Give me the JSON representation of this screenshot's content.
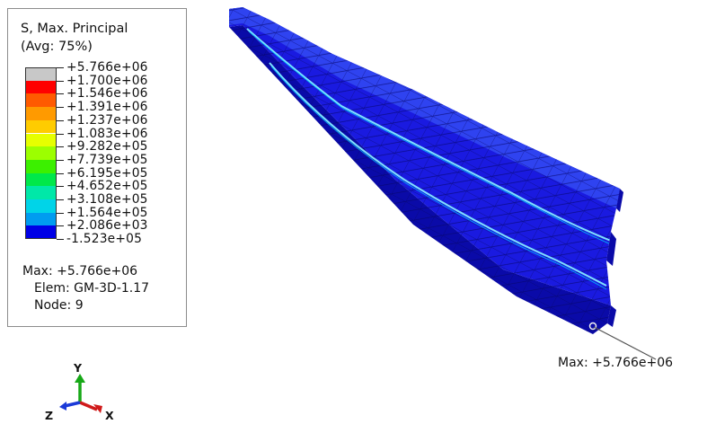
{
  "legend": {
    "title_line1": "S, Max. Principal",
    "title_line2": "(Avg: 75%)",
    "levels": [
      {
        "label": "+5.766e+06",
        "color": "#c8c8c8"
      },
      {
        "label": "+1.700e+06",
        "color": "#ff0000"
      },
      {
        "label": "+1.546e+06",
        "color": "#ff5a00"
      },
      {
        "label": "+1.391e+06",
        "color": "#ff9a00"
      },
      {
        "label": "+1.237e+06",
        "color": "#ffcc00"
      },
      {
        "label": "+1.083e+06",
        "color": "#e6ff00"
      },
      {
        "label": "+9.282e+05",
        "color": "#9cff00"
      },
      {
        "label": "+7.739e+05",
        "color": "#3cf000"
      },
      {
        "label": "+6.195e+05",
        "color": "#00e84a"
      },
      {
        "label": "+4.652e+05",
        "color": "#00e8a8"
      },
      {
        "label": "+3.108e+05",
        "color": "#00d4e8"
      },
      {
        "label": "+1.564e+05",
        "color": "#009cf0"
      },
      {
        "label": "+2.086e+03",
        "color": "#0050f0"
      },
      {
        "label": "-1.523e+05",
        "color": "#0000e6"
      }
    ],
    "max_text": "Max: +5.766e+06",
    "elem_text": "Elem: GM-3D-1.17",
    "node_text": "Node: 9"
  },
  "triad": {
    "y_label": "Y",
    "z_label": "Z",
    "x_label": "X"
  },
  "callout": {
    "max_label": "Max: +5.766e+06"
  },
  "colors": {
    "mesh_blue": "#1a1ae0",
    "mesh_dark": "#0a0aa8",
    "mesh_light": "#2f43f0",
    "mesh_lines": "#06066a",
    "crack_cyan": "#7fe0ff"
  }
}
